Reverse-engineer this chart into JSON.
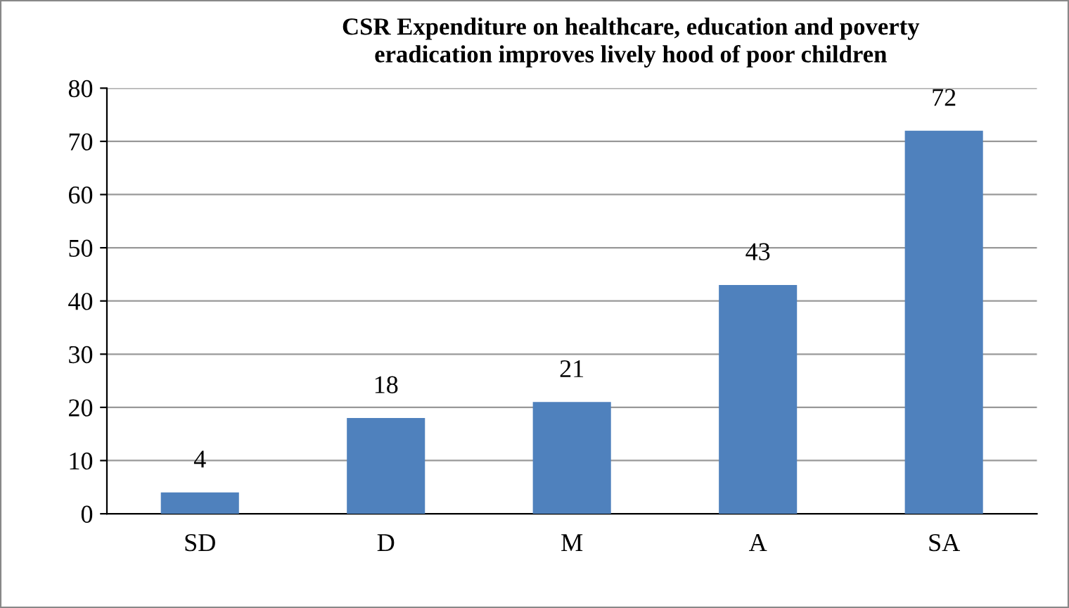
{
  "chart_data": {
    "type": "bar",
    "title": "CSR Expenditure on healthcare, education and poverty\neradication improves lively hood of poor children",
    "categories": [
      "SD",
      "D",
      "M",
      "A",
      "SA"
    ],
    "values": [
      4,
      18,
      21,
      43,
      72
    ],
    "color": "#4f81bd",
    "ylim": [
      0,
      80
    ],
    "yticks": [
      0,
      10,
      20,
      30,
      40,
      50,
      60,
      70,
      80
    ],
    "grid": "y",
    "data_labels": true
  }
}
